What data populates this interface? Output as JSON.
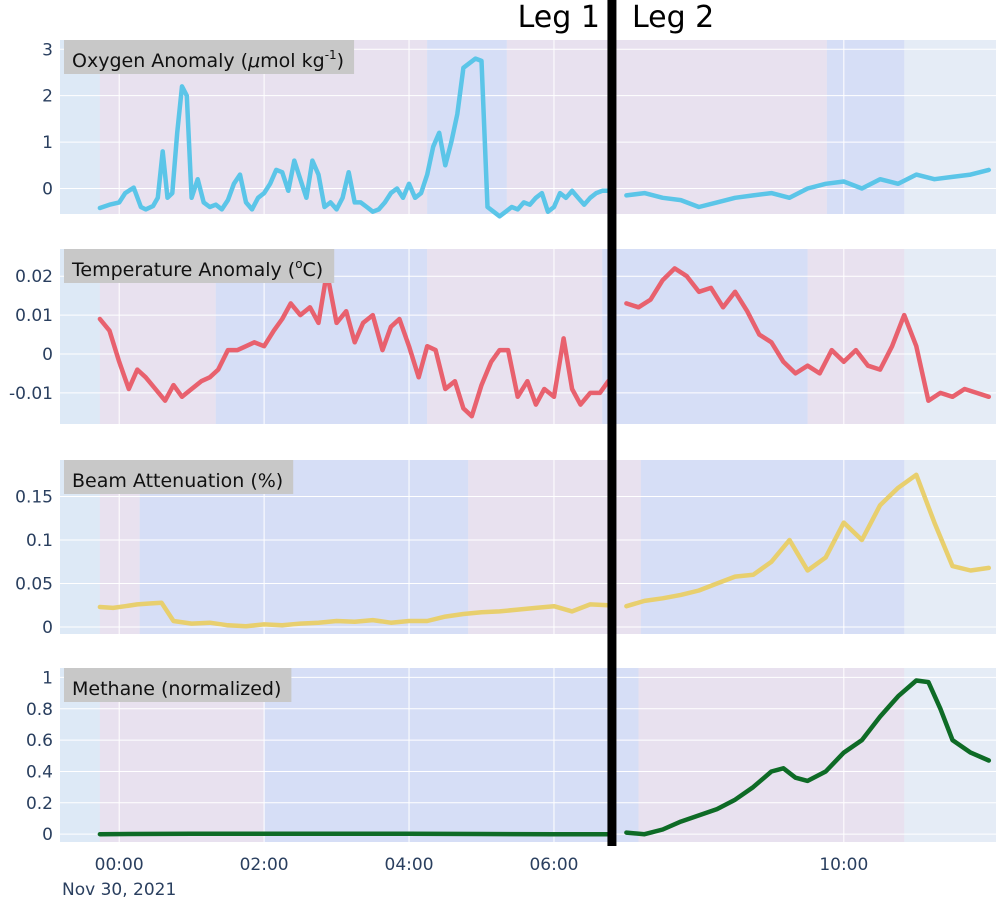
{
  "colors": {
    "plot_bg": "#e5ecf6",
    "shade_pink": "#e8e1ef",
    "shade_blue": "#d6def6",
    "shade_light": "#dde9f6",
    "grid": "#ffffff",
    "tick": "#2a3f5f",
    "title_box": "#c8c8c8",
    "divider": "#000000"
  },
  "leg_labels": [
    "Leg 1",
    "Leg 2"
  ],
  "x_axis": {
    "domain": [
      "23:11",
      "12:06"
    ],
    "ticks": [
      "00:00",
      "02:00",
      "04:00",
      "06:00",
      "10:00"
    ],
    "date_label": "Nov 30, 2021"
  },
  "divider_time": "06:48",
  "chart_data": [
    {
      "type": "line",
      "title_main": "Oxygen Anomaly (",
      "title_mu": "μ",
      "title_rest": "mol kg",
      "title_sup": "-1",
      "title_close": ")",
      "color": "#5bc5e8",
      "ylim": [
        -0.55,
        3.2
      ],
      "yticks": [
        0,
        1,
        2,
        3
      ],
      "ytick_labels": [
        "0",
        "1",
        "2",
        "3"
      ],
      "shading": [
        {
          "from": "23:11",
          "to": "23:44",
          "shade": "light"
        },
        {
          "from": "23:44",
          "to": "04:15",
          "shade": "pink"
        },
        {
          "from": "04:15",
          "to": "05:21",
          "shade": "blue"
        },
        {
          "from": "05:21",
          "to": "09:46",
          "shade": "pink"
        },
        {
          "from": "09:46",
          "to": "10:50",
          "shade": "blue"
        },
        {
          "from": "10:50",
          "to": "12:06",
          "shade": "light"
        }
      ],
      "segments": [
        {
          "x": [
            "23:44",
            "23:52",
            "24:00",
            "24:05",
            "24:12",
            "24:18",
            "24:22",
            "24:28",
            "24:32",
            "24:36",
            "24:40",
            "24:44",
            "24:48",
            "24:52",
            "24:56",
            "25:00",
            "25:05",
            "25:10",
            "25:15",
            "25:20",
            "25:25",
            "25:30",
            "25:35",
            "25:40",
            "25:45",
            "25:50",
            "25:55",
            "26:00",
            "26:05",
            "26:10",
            "26:15",
            "26:20",
            "26:25",
            "26:30",
            "26:35",
            "26:40",
            "26:45",
            "26:50",
            "26:55",
            "27:00",
            "27:05",
            "27:10",
            "27:15",
            "27:20",
            "27:25",
            "27:30",
            "27:35",
            "27:40",
            "27:45",
            "27:50",
            "27:55",
            "28:00",
            "28:05",
            "28:10",
            "28:15",
            "28:20",
            "28:25",
            "28:30",
            "28:35",
            "28:40",
            "28:45",
            "28:50",
            "28:55",
            "29:00",
            "29:05",
            "29:10",
            "29:15",
            "29:20",
            "29:25",
            "29:30",
            "29:35",
            "29:40",
            "29:45",
            "29:50",
            "29:55",
            "30:00",
            "30:05",
            "30:10",
            "30:15",
            "30:20",
            "30:25",
            "30:30",
            "30:35",
            "30:40",
            "30:45"
          ],
          "y": [
            -0.42,
            -0.35,
            -0.3,
            -0.1,
            0.02,
            -0.4,
            -0.45,
            -0.38,
            -0.2,
            0.8,
            -0.2,
            -0.1,
            1.2,
            2.2,
            2.0,
            -0.2,
            0.2,
            -0.3,
            -0.4,
            -0.35,
            -0.45,
            -0.25,
            0.1,
            0.3,
            -0.3,
            -0.45,
            -0.2,
            -0.1,
            0.1,
            0.4,
            0.35,
            -0.05,
            0.6,
            0.2,
            -0.2,
            0.6,
            0.3,
            -0.4,
            -0.3,
            -0.45,
            -0.2,
            0.35,
            -0.3,
            -0.3,
            -0.4,
            -0.5,
            -0.45,
            -0.3,
            -0.1,
            0.0,
            -0.2,
            0.1,
            -0.2,
            -0.1,
            0.3,
            0.9,
            1.2,
            0.5,
            1.0,
            1.6,
            2.6,
            2.7,
            2.8,
            2.75,
            -0.4,
            -0.5,
            -0.6,
            -0.5,
            -0.4,
            -0.45,
            -0.3,
            -0.35,
            -0.2,
            -0.1,
            -0.5,
            -0.4,
            -0.1,
            -0.2,
            -0.05,
            -0.2,
            -0.35,
            -0.2,
            -0.1,
            -0.05,
            -0.05
          ]
        },
        {
          "x": [
            "31:00",
            "31:15",
            "31:30",
            "31:45",
            "32:00",
            "32:15",
            "32:30",
            "32:45",
            "33:00",
            "33:15",
            "33:30",
            "33:45",
            "34:00",
            "34:15",
            "34:30",
            "34:45",
            "35:00",
            "35:15",
            "35:30",
            "35:45",
            "36:00"
          ],
          "y": [
            -0.15,
            -0.1,
            -0.2,
            -0.25,
            -0.4,
            -0.3,
            -0.2,
            -0.15,
            -0.1,
            -0.2,
            0.0,
            0.1,
            0.15,
            0.0,
            0.2,
            0.1,
            0.3,
            0.2,
            0.25,
            0.3,
            0.4
          ]
        }
      ]
    },
    {
      "type": "line",
      "title_main": "Temperature Anomaly (",
      "title_deg": "o",
      "title_rest": "C)",
      "color": "#e8616e",
      "ylim": [
        -0.018,
        0.027
      ],
      "yticks": [
        -0.01,
        0,
        0.01,
        0.02
      ],
      "ytick_labels": [
        "-0.01",
        "0",
        "0.01",
        "0.02"
      ],
      "shading": [
        {
          "from": "23:11",
          "to": "23:44",
          "shade": "light"
        },
        {
          "from": "23:44",
          "to": "01:20",
          "shade": "pink"
        },
        {
          "from": "01:20",
          "to": "04:15",
          "shade": "blue"
        },
        {
          "from": "04:15",
          "to": "06:40",
          "shade": "pink"
        },
        {
          "from": "06:40",
          "to": "09:30",
          "shade": "blue"
        },
        {
          "from": "09:30",
          "to": "10:50",
          "shade": "pink"
        },
        {
          "from": "10:50",
          "to": "12:06",
          "shade": "light"
        }
      ],
      "segments": [
        {
          "x": [
            "23:44",
            "23:52",
            "24:00",
            "24:08",
            "24:15",
            "24:22",
            "24:30",
            "24:38",
            "24:45",
            "24:52",
            "25:00",
            "25:08",
            "25:15",
            "25:22",
            "25:30",
            "25:38",
            "25:45",
            "25:52",
            "26:00",
            "26:08",
            "26:15",
            "26:22",
            "26:30",
            "26:38",
            "26:45",
            "26:52",
            "27:00",
            "27:08",
            "27:15",
            "27:22",
            "27:30",
            "27:38",
            "27:45",
            "27:52",
            "28:00",
            "28:08",
            "28:15",
            "28:22",
            "28:30",
            "28:38",
            "28:45",
            "28:52",
            "29:00",
            "29:08",
            "29:15",
            "29:22",
            "29:30",
            "29:38",
            "29:45",
            "29:52",
            "30:00",
            "30:08",
            "30:15",
            "30:22",
            "30:30",
            "30:38",
            "30:45"
          ],
          "y": [
            0.009,
            0.006,
            -0.002,
            -0.009,
            -0.004,
            -0.006,
            -0.009,
            -0.012,
            -0.008,
            -0.011,
            -0.009,
            -0.007,
            -0.006,
            -0.004,
            0.001,
            0.001,
            0.002,
            0.003,
            0.002,
            0.006,
            0.009,
            0.013,
            0.01,
            0.012,
            0.008,
            0.021,
            0.008,
            0.011,
            0.003,
            0.008,
            0.01,
            0.001,
            0.007,
            0.009,
            0.002,
            -0.006,
            0.002,
            0.001,
            -0.009,
            -0.007,
            -0.014,
            -0.016,
            -0.008,
            -0.002,
            0.001,
            0.001,
            -0.011,
            -0.007,
            -0.013,
            -0.009,
            -0.011,
            0.004,
            -0.009,
            -0.013,
            -0.01,
            -0.01,
            -0.007
          ]
        },
        {
          "x": [
            "31:00",
            "31:10",
            "31:20",
            "31:30",
            "31:40",
            "31:50",
            "32:00",
            "32:10",
            "32:20",
            "32:30",
            "32:40",
            "32:50",
            "33:00",
            "33:10",
            "33:20",
            "33:30",
            "33:40",
            "33:50",
            "34:00",
            "34:10",
            "34:20",
            "34:30",
            "34:40",
            "34:50",
            "35:00",
            "35:10",
            "35:20",
            "35:30",
            "35:40",
            "35:50",
            "36:00"
          ],
          "y": [
            0.013,
            0.012,
            0.014,
            0.019,
            0.022,
            0.02,
            0.016,
            0.017,
            0.012,
            0.016,
            0.011,
            0.005,
            0.003,
            -0.002,
            -0.005,
            -0.003,
            -0.005,
            0.001,
            -0.002,
            0.001,
            -0.003,
            -0.004,
            0.002,
            0.01,
            0.002,
            -0.012,
            -0.01,
            -0.011,
            -0.009,
            -0.01,
            -0.011
          ]
        }
      ]
    },
    {
      "type": "line",
      "title_main": "Beam Attenuation (%)",
      "color": "#e8cf6e",
      "ylim": [
        -0.008,
        0.192
      ],
      "yticks": [
        0,
        0.05,
        0.1,
        0.15
      ],
      "ytick_labels": [
        "0",
        "0.05",
        "0.1",
        "0.15"
      ],
      "shading": [
        {
          "from": "23:11",
          "to": "23:44",
          "shade": "light"
        },
        {
          "from": "23:44",
          "to": "00:17",
          "shade": "pink"
        },
        {
          "from": "00:17",
          "to": "04:49",
          "shade": "blue"
        },
        {
          "from": "04:49",
          "to": "07:12",
          "shade": "pink"
        },
        {
          "from": "07:12",
          "to": "10:50",
          "shade": "blue"
        },
        {
          "from": "10:50",
          "to": "12:06",
          "shade": "light"
        }
      ],
      "segments": [
        {
          "x": [
            "23:44",
            "23:55",
            "24:05",
            "24:15",
            "24:25",
            "24:35",
            "24:45",
            "25:00",
            "25:15",
            "25:30",
            "25:45",
            "26:00",
            "26:15",
            "26:30",
            "26:45",
            "27:00",
            "27:15",
            "27:30",
            "27:45",
            "28:00",
            "28:15",
            "28:30",
            "28:45",
            "29:00",
            "29:15",
            "29:30",
            "29:45",
            "30:00",
            "30:15",
            "30:30",
            "30:45"
          ],
          "y": [
            0.023,
            0.022,
            0.024,
            0.026,
            0.027,
            0.028,
            0.007,
            0.004,
            0.005,
            0.002,
            0.001,
            0.003,
            0.002,
            0.004,
            0.005,
            0.007,
            0.006,
            0.008,
            0.005,
            0.007,
            0.007,
            0.012,
            0.015,
            0.017,
            0.018,
            0.02,
            0.022,
            0.024,
            0.018,
            0.026,
            0.025
          ]
        },
        {
          "x": [
            "31:00",
            "31:15",
            "31:30",
            "31:45",
            "32:00",
            "32:15",
            "32:30",
            "32:45",
            "33:00",
            "33:15",
            "33:30",
            "33:45",
            "34:00",
            "34:15",
            "34:30",
            "34:45",
            "35:00",
            "35:15",
            "35:30",
            "35:45",
            "36:00"
          ],
          "y": [
            0.024,
            0.03,
            0.033,
            0.037,
            0.042,
            0.05,
            0.058,
            0.06,
            0.075,
            0.1,
            0.065,
            0.08,
            0.12,
            0.1,
            0.14,
            0.16,
            0.175,
            0.12,
            0.07,
            0.065,
            0.068
          ]
        }
      ]
    },
    {
      "type": "line",
      "title_main": "Methane (normalized)",
      "color": "#0e6b26",
      "ylim": [
        -0.05,
        1.06
      ],
      "yticks": [
        0,
        0.2,
        0.4,
        0.6,
        0.8,
        1
      ],
      "ytick_labels": [
        "0",
        "0.2",
        "0.4",
        "0.6",
        "0.8",
        "1"
      ],
      "shading": [
        {
          "from": "23:11",
          "to": "23:44",
          "shade": "light"
        },
        {
          "from": "23:44",
          "to": "02:00",
          "shade": "pink"
        },
        {
          "from": "02:00",
          "to": "07:10",
          "shade": "blue"
        },
        {
          "from": "07:10",
          "to": "10:50",
          "shade": "pink"
        },
        {
          "from": "10:50",
          "to": "12:06",
          "shade": "light"
        }
      ],
      "segments": [
        {
          "x": [
            "23:44",
            "25:00",
            "26:00",
            "27:00",
            "28:00",
            "29:00",
            "30:00",
            "30:45"
          ],
          "y": [
            0.0,
            0.003,
            0.003,
            0.002,
            0.002,
            0.001,
            0.0,
            0.0
          ]
        },
        {
          "x": [
            "31:00",
            "31:15",
            "31:30",
            "31:45",
            "32:00",
            "32:15",
            "32:30",
            "32:45",
            "33:00",
            "33:10",
            "33:20",
            "33:30",
            "33:45",
            "34:00",
            "34:15",
            "34:30",
            "34:45",
            "35:00",
            "35:10",
            "35:20",
            "35:30",
            "35:45",
            "36:00"
          ],
          "y": [
            0.01,
            0.0,
            0.03,
            0.08,
            0.12,
            0.16,
            0.22,
            0.3,
            0.4,
            0.42,
            0.36,
            0.34,
            0.4,
            0.52,
            0.6,
            0.75,
            0.88,
            0.98,
            0.97,
            0.8,
            0.6,
            0.52,
            0.47
          ]
        }
      ]
    }
  ]
}
